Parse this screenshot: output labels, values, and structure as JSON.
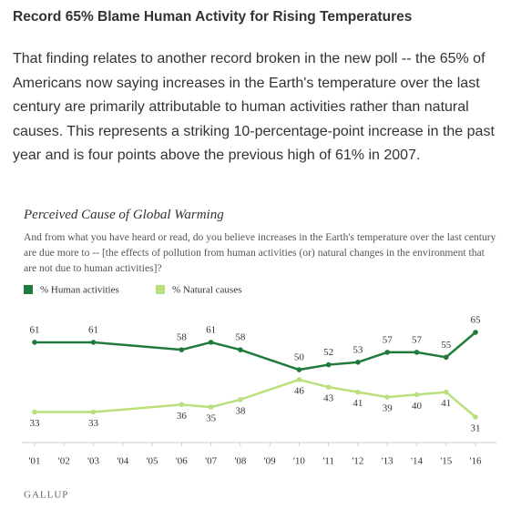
{
  "heading": "Record 65% Blame Human Activity for Rising Temperatures",
  "paragraph": "That finding relates to another record broken in the new poll -- the 65% of Americans now saying increases in the Earth's temperature over the last century are primarily attributable to human activities rather than natural causes. This represents a striking 10-percentage-point increase in the past year and is four points above the previous high of 61% in 2007.",
  "chart_data": {
    "type": "line",
    "title": "Perceived Cause of Global Warming",
    "subtitle": "And from what you have heard or read, do you believe increases in the Earth's temperature over the last century are due more to -- [the effects of pollution from human activities (or) natural changes in the environment that are not due to human activities]?",
    "x": [
      1,
      3,
      6,
      7,
      8,
      10,
      11,
      12,
      13,
      14,
      15,
      16
    ],
    "xticks": [
      {
        "value": 1,
        "label": "'01"
      },
      {
        "value": 2,
        "label": "'02"
      },
      {
        "value": 3,
        "label": "'03"
      },
      {
        "value": 4,
        "label": "'04"
      },
      {
        "value": 5,
        "label": "'05"
      },
      {
        "value": 6,
        "label": "'06"
      },
      {
        "value": 7,
        "label": "'07"
      },
      {
        "value": 8,
        "label": "'08"
      },
      {
        "value": 9,
        "label": "'09"
      },
      {
        "value": 10,
        "label": "'10"
      },
      {
        "value": 11,
        "label": "'11"
      },
      {
        "value": 12,
        "label": "'12"
      },
      {
        "value": 13,
        "label": "'13"
      },
      {
        "value": 14,
        "label": "'14"
      },
      {
        "value": 15,
        "label": "'15"
      },
      {
        "value": 16,
        "label": "'16"
      }
    ],
    "series": [
      {
        "name": "% Human activities",
        "color": "#1f7a3b",
        "values": [
          61,
          61,
          58,
          61,
          58,
          50,
          52,
          53,
          57,
          57,
          55,
          65
        ]
      },
      {
        "name": "% Natural causes",
        "color": "#b9e07c",
        "values": [
          33,
          33,
          36,
          35,
          38,
          46,
          43,
          41,
          39,
          40,
          41,
          31
        ]
      }
    ],
    "source": "GALLUP"
  }
}
